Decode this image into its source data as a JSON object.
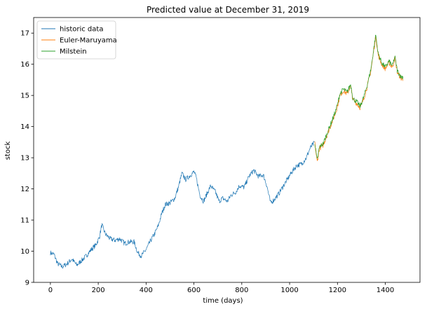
{
  "chart_data": {
    "type": "line",
    "title": "Predicted value at December 31, 2019",
    "xlabel": "time (days)",
    "ylabel": "stock",
    "xlim": [
      -70,
      1545
    ],
    "ylim": [
      9,
      17.5
    ],
    "xticks": [
      0,
      200,
      400,
      600,
      800,
      1000,
      1200,
      1400
    ],
    "yticks": [
      9,
      10,
      11,
      12,
      13,
      14,
      15,
      16,
      17
    ],
    "grid": false,
    "legend_position": "top-left",
    "series": [
      {
        "name": "historic data",
        "color": "#1f77b4",
        "x_start": 0,
        "x_end": 1105,
        "anchors": [
          [
            0,
            9.95
          ],
          [
            15,
            9.9
          ],
          [
            30,
            9.6
          ],
          [
            50,
            9.5
          ],
          [
            70,
            9.6
          ],
          [
            90,
            9.75
          ],
          [
            110,
            9.55
          ],
          [
            130,
            9.7
          ],
          [
            150,
            9.85
          ],
          [
            170,
            10.05
          ],
          [
            190,
            10.2
          ],
          [
            205,
            10.45
          ],
          [
            215,
            10.85
          ],
          [
            230,
            10.55
          ],
          [
            250,
            10.4
          ],
          [
            270,
            10.35
          ],
          [
            290,
            10.4
          ],
          [
            310,
            10.25
          ],
          [
            330,
            10.3
          ],
          [
            350,
            10.3
          ],
          [
            365,
            9.95
          ],
          [
            380,
            9.85
          ],
          [
            400,
            10.05
          ],
          [
            420,
            10.35
          ],
          [
            435,
            10.55
          ],
          [
            450,
            10.8
          ],
          [
            465,
            11.2
          ],
          [
            480,
            11.5
          ],
          [
            500,
            11.55
          ],
          [
            520,
            11.7
          ],
          [
            535,
            12.05
          ],
          [
            550,
            12.5
          ],
          [
            565,
            12.3
          ],
          [
            580,
            12.4
          ],
          [
            600,
            12.55
          ],
          [
            610,
            12.35
          ],
          [
            625,
            11.8
          ],
          [
            640,
            11.6
          ],
          [
            655,
            11.85
          ],
          [
            670,
            12.1
          ],
          [
            690,
            11.9
          ],
          [
            705,
            11.6
          ],
          [
            720,
            11.7
          ],
          [
            740,
            11.6
          ],
          [
            755,
            11.8
          ],
          [
            775,
            11.9
          ],
          [
            790,
            12.1
          ],
          [
            810,
            12.05
          ],
          [
            830,
            12.4
          ],
          [
            850,
            12.6
          ],
          [
            870,
            12.4
          ],
          [
            890,
            12.45
          ],
          [
            905,
            12.1
          ],
          [
            920,
            11.55
          ],
          [
            935,
            11.65
          ],
          [
            955,
            11.85
          ],
          [
            970,
            12.05
          ],
          [
            990,
            12.3
          ],
          [
            1010,
            12.55
          ],
          [
            1030,
            12.75
          ],
          [
            1050,
            12.8
          ],
          [
            1070,
            13.0
          ],
          [
            1085,
            13.3
          ],
          [
            1105,
            13.5
          ]
        ]
      },
      {
        "name": "Euler-Maruyama",
        "color": "#ff7f0e",
        "x_start": 1105,
        "x_end": 1475,
        "anchors": [
          [
            1105,
            13.5
          ],
          [
            1115,
            12.85
          ],
          [
            1125,
            13.3
          ],
          [
            1140,
            13.4
          ],
          [
            1160,
            13.8
          ],
          [
            1175,
            14.1
          ],
          [
            1190,
            14.4
          ],
          [
            1200,
            14.65
          ],
          [
            1210,
            15.0
          ],
          [
            1225,
            15.15
          ],
          [
            1240,
            15.05
          ],
          [
            1255,
            15.3
          ],
          [
            1265,
            14.85
          ],
          [
            1280,
            14.75
          ],
          [
            1295,
            14.6
          ],
          [
            1310,
            14.9
          ],
          [
            1325,
            15.3
          ],
          [
            1340,
            15.8
          ],
          [
            1350,
            16.35
          ],
          [
            1360,
            16.9
          ],
          [
            1370,
            16.3
          ],
          [
            1385,
            16.0
          ],
          [
            1400,
            15.85
          ],
          [
            1415,
            16.05
          ],
          [
            1430,
            15.9
          ],
          [
            1440,
            16.2
          ],
          [
            1450,
            15.75
          ],
          [
            1465,
            15.55
          ],
          [
            1475,
            15.5
          ]
        ]
      },
      {
        "name": "Milstein",
        "color": "#2ca02c",
        "x_start": 1105,
        "x_end": 1475,
        "anchors": [
          [
            1105,
            13.5
          ],
          [
            1115,
            12.9
          ],
          [
            1125,
            13.35
          ],
          [
            1140,
            13.45
          ],
          [
            1160,
            13.85
          ],
          [
            1175,
            14.15
          ],
          [
            1190,
            14.45
          ],
          [
            1200,
            14.7
          ],
          [
            1210,
            15.05
          ],
          [
            1225,
            15.2
          ],
          [
            1240,
            15.1
          ],
          [
            1255,
            15.35
          ],
          [
            1265,
            14.9
          ],
          [
            1280,
            14.8
          ],
          [
            1295,
            14.65
          ],
          [
            1310,
            14.95
          ],
          [
            1325,
            15.35
          ],
          [
            1340,
            15.85
          ],
          [
            1350,
            16.4
          ],
          [
            1360,
            16.95
          ],
          [
            1370,
            16.35
          ],
          [
            1385,
            16.05
          ],
          [
            1400,
            15.9
          ],
          [
            1415,
            16.1
          ],
          [
            1430,
            15.95
          ],
          [
            1440,
            16.25
          ],
          [
            1450,
            15.8
          ],
          [
            1465,
            15.6
          ],
          [
            1475,
            15.6
          ]
        ]
      }
    ]
  }
}
